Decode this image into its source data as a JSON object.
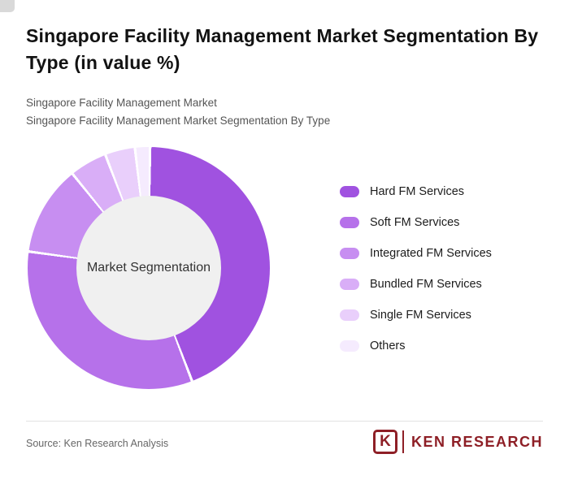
{
  "header": {
    "title": "Singapore Facility Management Market Segmentation By Type (in value %)",
    "subtitle_line1": "Singapore Facility Management Market",
    "subtitle_line2": "Singapore Facility Management Market Segmentation By Type"
  },
  "chart_data": {
    "type": "pie",
    "variant": "donut",
    "title": "Singapore Facility Management Market Segmentation By Type (in value %)",
    "center_label": "Market Segmentation",
    "legend_position": "right",
    "start_angle_deg": 0,
    "segments": [
      {
        "label": "Hard FM Services",
        "value": 44,
        "color": "#a052e0"
      },
      {
        "label": "Soft FM Services",
        "value": 33,
        "color": "#b671ea"
      },
      {
        "label": "Integrated FM Services",
        "value": 12,
        "color": "#c78ef1"
      },
      {
        "label": "Bundled FM Services",
        "value": 5,
        "color": "#d9aef7"
      },
      {
        "label": "Single FM Services",
        "value": 4,
        "color": "#e9cffb"
      },
      {
        "label": "Others",
        "value": 2,
        "color": "#f5ebfe"
      }
    ]
  },
  "footer": {
    "source": "Source: Ken Research Analysis",
    "logo": {
      "emblem": "K",
      "text": "KEN RESEARCH",
      "color": "#8e1f26"
    }
  },
  "colors": {
    "brand_red": "#8e1f26",
    "center_circle": "#f0f0f0",
    "divider": "#e2e2e2"
  }
}
